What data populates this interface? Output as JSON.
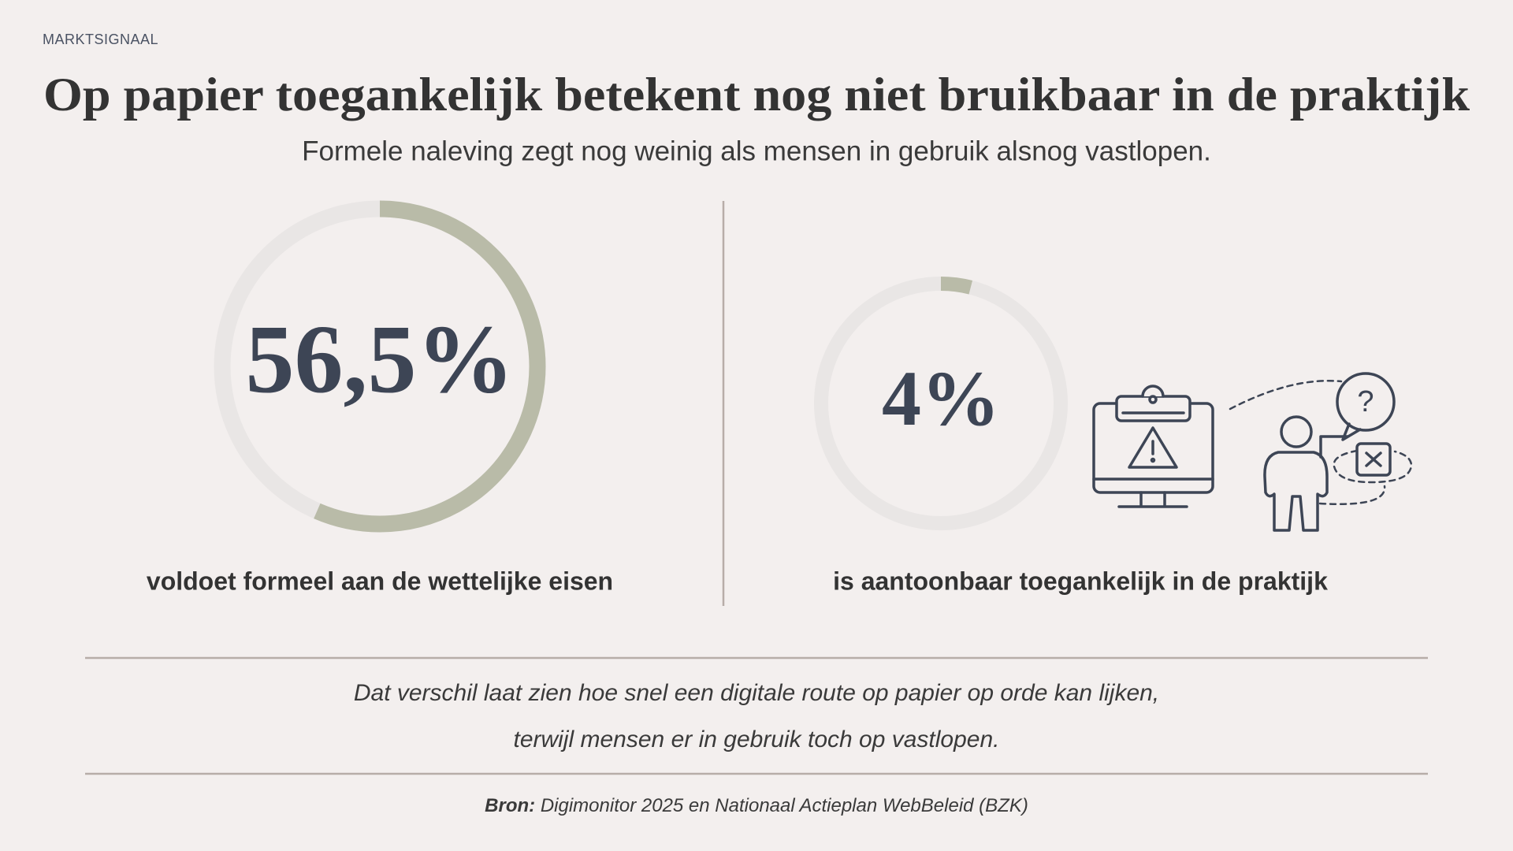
{
  "eyebrow": "MARKTSIGNAAL",
  "title": "Op papier toegankelijk betekent nog niet bruikbaar in de praktijk",
  "subtitle": "Formele naleving zegt nog weinig als mensen in gebruik alsnog vastlopen.",
  "chart_data": [
    {
      "type": "donut",
      "values": [
        56.5
      ],
      "value_labels": [
        "56,5%"
      ],
      "ylim": [
        0,
        100
      ],
      "color": "#b9bba8",
      "caption": "voldoet formeel aan de wettelijke eisen"
    },
    {
      "type": "donut",
      "values": [
        4
      ],
      "value_labels": [
        "4%"
      ],
      "ylim": [
        0,
        100
      ],
      "color": "#b9bba8",
      "caption": "is aantoonbaar toegankelijk in de praktijk"
    }
  ],
  "quote": [
    "Dat verschil laat zien hoe snel een digitale route op papier op orde kan lijken,",
    "terwijl mensen er in gebruik toch op vastlopen."
  ],
  "source": {
    "label": "Bron:",
    "text": "Digimonitor 2025 en Nationaal Actieplan WebBeleid (BZK)"
  }
}
